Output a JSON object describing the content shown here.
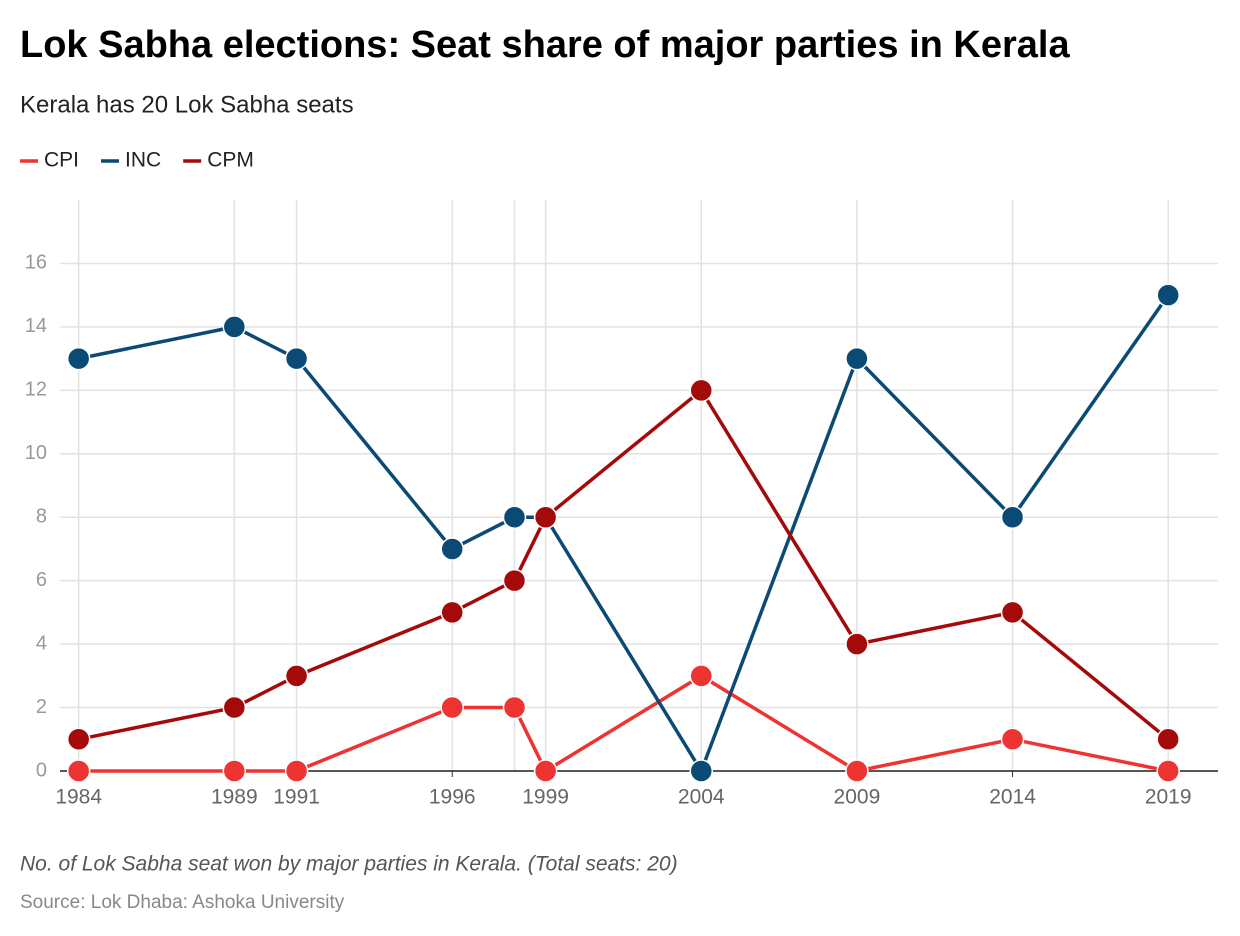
{
  "chart_data": {
    "type": "line",
    "title": "Lok Sabha elections: Seat share of major parties in Kerala",
    "subtitle": "Kerala has 20 Lok Sabha seats",
    "note": "No. of Lok Sabha seat won by major parties in Kerala. (Total seats: 20)",
    "source": "Source: Lok Dhaba: Ashoka University",
    "x": [
      1984,
      1989,
      1991,
      1996,
      1998,
      1999,
      2004,
      2009,
      2014,
      2019
    ],
    "series": [
      {
        "name": "CPI",
        "color": "#ee3333",
        "values": [
          0,
          0,
          0,
          2,
          2,
          0,
          3,
          0,
          1,
          0
        ]
      },
      {
        "name": "INC",
        "color": "#0b4a74",
        "values": [
          13,
          14,
          13,
          7,
          8,
          8,
          0,
          13,
          8,
          15
        ]
      },
      {
        "name": "CPM",
        "color": "#a50a0a",
        "values": [
          1,
          2,
          3,
          5,
          6,
          8,
          12,
          4,
          5,
          1
        ]
      }
    ],
    "xlim": [
      1983.4,
      2020.6
    ],
    "xticks": [
      1984,
      1989,
      1991,
      1996,
      1999,
      2004,
      2009,
      2014,
      2019
    ],
    "ylim": [
      0,
      18
    ],
    "yticks": [
      0,
      2,
      4,
      6,
      8,
      10,
      12,
      14,
      16
    ],
    "grid": true
  }
}
